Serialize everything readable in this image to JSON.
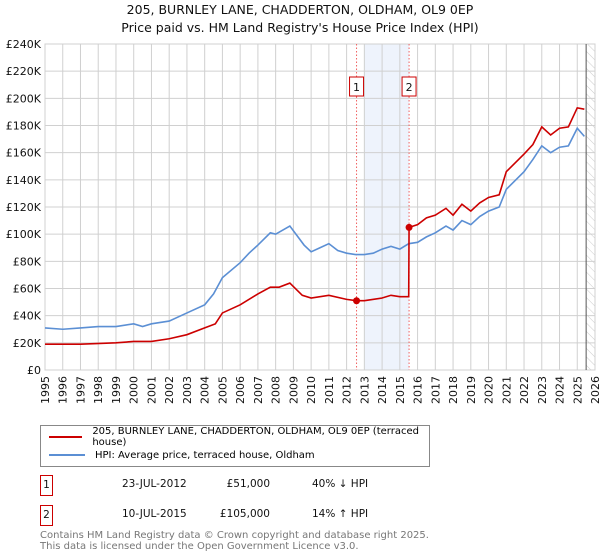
{
  "chart_data": {
    "type": "line",
    "title": "205, BURNLEY LANE, CHADDERTON, OLDHAM, OL9 0EP",
    "subtitle": "Price paid vs. HM Land Registry's House Price Index (HPI)",
    "xlim": [
      1995,
      2026
    ],
    "ylim": [
      0,
      240000
    ],
    "x_ticks": [
      "1995",
      "1996",
      "1997",
      "1998",
      "1999",
      "2000",
      "2001",
      "2002",
      "2003",
      "2004",
      "2005",
      "2006",
      "2007",
      "2008",
      "2009",
      "2010",
      "2011",
      "2012",
      "2013",
      "2014",
      "2015",
      "2016",
      "2017",
      "2018",
      "2019",
      "2020",
      "2021",
      "2022",
      "2023",
      "2024",
      "2025",
      "2026"
    ],
    "y_ticks": [
      "£0",
      "£20K",
      "£40K",
      "£60K",
      "£80K",
      "£100K",
      "£120K",
      "£140K",
      "£160K",
      "£180K",
      "£200K",
      "£220K",
      "£240K"
    ],
    "grid": true,
    "series": [
      {
        "name": "205, BURNLEY LANE, CHADDERTON, OLDHAM, OL9 0EP (terraced house)",
        "color": "#cc0000",
        "x": [
          1995,
          1997,
          1999,
          2000,
          2001,
          2002,
          2003,
          2004,
          2004.6,
          2005,
          2006,
          2007,
          2007.7,
          2008.2,
          2008.8,
          2009.5,
          2010,
          2011,
          2012,
          2012.56,
          2013,
          2014,
          2014.5,
          2015,
          2015.5,
          2015.52,
          2016,
          2016.5,
          2017,
          2017.6,
          2018,
          2018.5,
          2019,
          2019.5,
          2020,
          2020.6,
          2021,
          2022,
          2022.5,
          2023,
          2023.5,
          2024,
          2024.5,
          2025,
          2025.4
        ],
        "y": [
          19000,
          19000,
          20000,
          21000,
          21000,
          23000,
          26000,
          31000,
          34000,
          42000,
          48000,
          56000,
          61000,
          61000,
          64000,
          55000,
          53000,
          55000,
          52000,
          51000,
          51000,
          53000,
          55000,
          54000,
          54000,
          105000,
          107000,
          112000,
          114000,
          119000,
          114000,
          122000,
          117000,
          123000,
          127000,
          129000,
          146000,
          159000,
          166000,
          179000,
          173000,
          178000,
          179000,
          193000,
          192000
        ]
      },
      {
        "name": "HPI: Average price, terraced house, Oldham",
        "color": "#5b8fd4",
        "x": [
          1995,
          1996,
          1997,
          1998,
          1999,
          2000,
          2000.5,
          2001,
          2002,
          2003,
          2004,
          2004.5,
          2005,
          2006,
          2006.5,
          2007,
          2007.7,
          2008,
          2008.8,
          2009.2,
          2009.6,
          2010,
          2010.5,
          2011,
          2011.5,
          2012,
          2012.5,
          2013,
          2013.5,
          2014,
          2014.5,
          2015,
          2015.5,
          2016,
          2016.5,
          2017,
          2017.6,
          2018,
          2018.5,
          2019,
          2019.5,
          2020,
          2020.6,
          2021,
          2022,
          2022.5,
          2023,
          2023.5,
          2024,
          2024.5,
          2025,
          2025.4
        ],
        "y": [
          31000,
          30000,
          31000,
          32000,
          32000,
          34000,
          32000,
          34000,
          36000,
          42000,
          48000,
          56000,
          68000,
          79000,
          86000,
          92000,
          101000,
          100000,
          106000,
          99000,
          92000,
          87000,
          90000,
          93000,
          88000,
          86000,
          85000,
          85000,
          86000,
          89000,
          91000,
          89000,
          93000,
          94000,
          98000,
          101000,
          106000,
          103000,
          110000,
          107000,
          113000,
          117000,
          120000,
          133000,
          146000,
          155000,
          165000,
          160000,
          164000,
          165000,
          178000,
          172000
        ]
      }
    ],
    "annotations": [
      {
        "label": "1",
        "x": 2012.56,
        "y": 51000
      },
      {
        "label": "2",
        "x": 2015.52,
        "y": 105000
      }
    ]
  },
  "legend": {
    "property": "205, BURNLEY LANE, CHADDERTON, OLDHAM, OL9 0EP (terraced house)",
    "hpi": "HPI: Average price, terraced house, Oldham"
  },
  "sales": [
    {
      "num": "1",
      "date": "23-JUL-2012",
      "price": "£51,000",
      "hpi": "40% ↓ HPI"
    },
    {
      "num": "2",
      "date": "10-JUL-2015",
      "price": "£105,000",
      "hpi": "14% ↑ HPI"
    }
  ],
  "footer": [
    "Contains HM Land Registry data © Crown copyright and database right 2025.",
    "This data is licensed under the Open Government Licence v3.0."
  ]
}
